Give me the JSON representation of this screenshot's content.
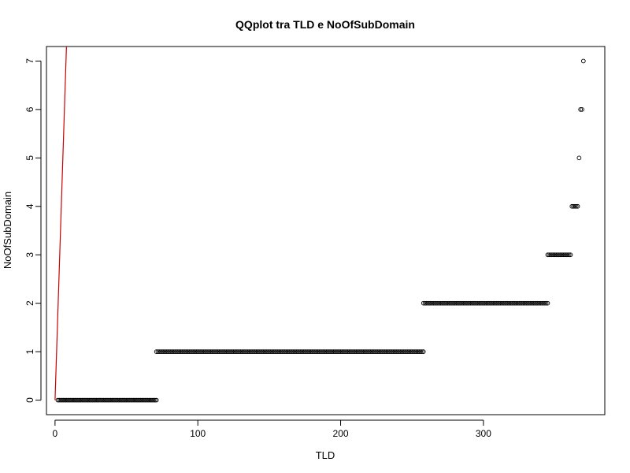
{
  "chart_data": {
    "type": "scatter",
    "title": "QQplot tra TLD e NoOfSubDomain",
    "xlabel": "TLD",
    "ylabel": "NoOfSubDomain",
    "xlim": [
      -6,
      385
    ],
    "ylim": [
      -0.3,
      7.3
    ],
    "xticks": [
      0,
      100,
      200,
      300
    ],
    "yticks": [
      0,
      1,
      2,
      3,
      4,
      5,
      6,
      7
    ],
    "grid": false,
    "legend": "none",
    "colors": {
      "points": "#000000",
      "reference_line": "#cc0000"
    },
    "reference_line": {
      "x": [
        0,
        8
      ],
      "y": [
        0,
        7.3
      ]
    },
    "series": [
      {
        "y": 0,
        "x_from": 2,
        "x_to": 71,
        "step": 1
      },
      {
        "y": 1,
        "x_from": 71,
        "x_to": 258,
        "step": 1
      },
      {
        "y": 2,
        "x_from": 258,
        "x_to": 345,
        "step": 1
      },
      {
        "y": 3,
        "x_from": 345,
        "x_to": 361,
        "step": 1
      },
      {
        "y": 4,
        "x_from": 362,
        "x_to": 366,
        "step": 1
      },
      {
        "y": 5,
        "x_from": 367,
        "x_to": 367,
        "step": 1
      },
      {
        "y": 6,
        "x_from": 368,
        "x_to": 369,
        "step": 1
      },
      {
        "y": 7,
        "x_from": 370,
        "x_to": 370,
        "step": 1
      }
    ]
  }
}
